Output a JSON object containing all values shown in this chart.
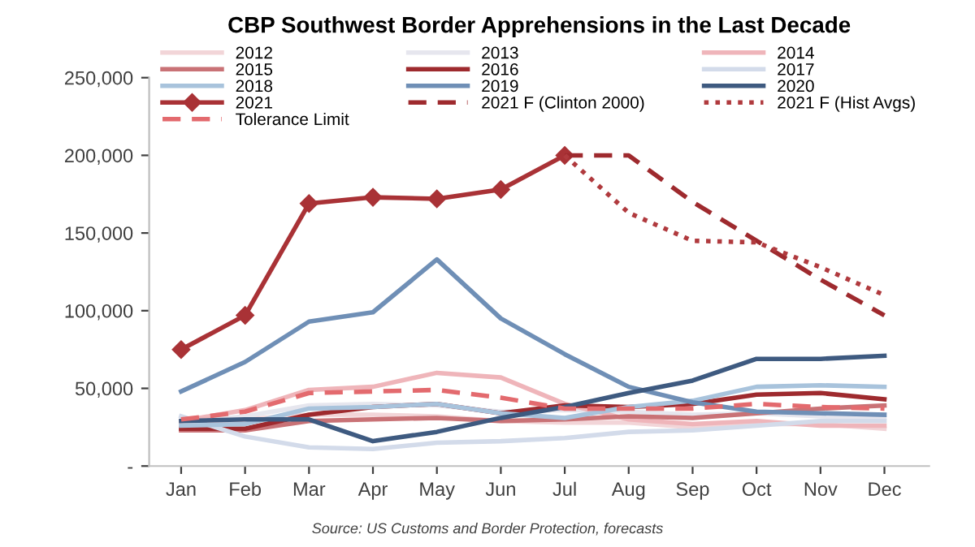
{
  "chart_data": {
    "type": "line",
    "title": "CBP Southwest Border Apprehensions in the Last Decade",
    "categories": [
      "Jan",
      "Feb",
      "Mar",
      "Apr",
      "May",
      "Jun",
      "Jul",
      "Aug",
      "Sep",
      "Oct",
      "Nov",
      "Dec"
    ],
    "series": [
      {
        "name": "2012",
        "color": "#f2d5d8",
        "values": [
          26000,
          30000,
          33000,
          33000,
          32000,
          29000,
          28000,
          28000,
          25000,
          27000,
          27000,
          24000
        ]
      },
      {
        "name": "2013",
        "color": "#e6e6ee",
        "values": [
          28000,
          32000,
          39000,
          40000,
          39000,
          35000,
          36000,
          35000,
          33000,
          34000,
          32000,
          31000
        ]
      },
      {
        "name": "2014",
        "color": "#efb5ba",
        "values": [
          29000,
          36000,
          49000,
          51000,
          60000,
          57000,
          40000,
          30000,
          27000,
          29000,
          26000,
          26000
        ]
      },
      {
        "name": "2015",
        "color": "#c97276",
        "values": [
          23000,
          23000,
          29000,
          30000,
          31000,
          29000,
          30000,
          32000,
          31000,
          34000,
          37000,
          39000
        ]
      },
      {
        "name": "2016",
        "color": "#9e2a2e",
        "values": [
          24000,
          24000,
          33000,
          38000,
          40000,
          34000,
          39000,
          38000,
          40000,
          46000,
          47000,
          43000
        ]
      },
      {
        "name": "2017",
        "color": "#d3dbea",
        "values": [
          32000,
          19000,
          12000,
          11000,
          15000,
          16000,
          18000,
          22000,
          23000,
          26000,
          29000,
          29000
        ]
      },
      {
        "name": "2018",
        "color": "#a8c3dc",
        "values": [
          26000,
          27000,
          37000,
          38000,
          40000,
          34000,
          31000,
          38000,
          42000,
          51000,
          52000,
          51000
        ]
      },
      {
        "name": "2019",
        "color": "#6f8fb6",
        "values": [
          48000,
          67000,
          93000,
          99000,
          133000,
          95000,
          72000,
          51000,
          41000,
          35000,
          34000,
          33000
        ]
      },
      {
        "name": "2020",
        "color": "#3e5a80",
        "values": [
          29000,
          30000,
          30000,
          16000,
          22000,
          31000,
          38000,
          47000,
          55000,
          69000,
          69000,
          71000
        ]
      },
      {
        "name": "2021",
        "color": "#a93236",
        "marker": "diamond",
        "values": [
          75000,
          97000,
          169000,
          173000,
          172000,
          178000,
          200000,
          null,
          null,
          null,
          null,
          null
        ]
      },
      {
        "name": "2021 F (Clinton 2000)",
        "color": "#9e2a2e",
        "line_style": "dashed",
        "values": [
          null,
          null,
          null,
          null,
          null,
          null,
          200000,
          200000,
          170000,
          145000,
          120000,
          97000
        ]
      },
      {
        "name": "2021 F (Hist Avgs)",
        "color": "#b03a3e",
        "line_style": "dotted",
        "values": [
          null,
          null,
          null,
          null,
          null,
          null,
          200000,
          163000,
          145000,
          144000,
          128000,
          110000
        ]
      },
      {
        "name": "Tolerance Limit",
        "color": "#e36a6e",
        "line_style": "dashed",
        "values": [
          30000,
          35000,
          47000,
          48000,
          49000,
          44000,
          37000,
          37000,
          37000,
          40000,
          38000,
          37000
        ]
      }
    ],
    "ylim": [
      0,
      250000
    ],
    "yticks": [
      {
        "value": 0,
        "label": "-"
      },
      {
        "value": 50000,
        "label": "50,000"
      },
      {
        "value": 100000,
        "label": "100,000"
      },
      {
        "value": 150000,
        "label": "150,000"
      },
      {
        "value": 200000,
        "label": "200,000"
      },
      {
        "value": 250000,
        "label": "250,000"
      }
    ],
    "grid": false,
    "legend": "top",
    "annotations": [
      "Source: US Customs and Border Protection, forecasts"
    ]
  }
}
